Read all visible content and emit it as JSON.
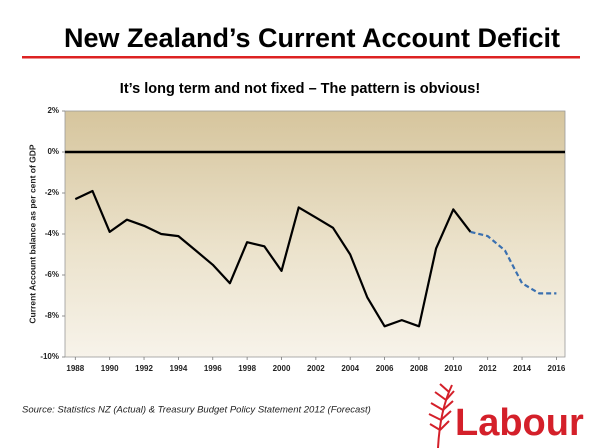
{
  "chart_data": {
    "type": "line",
    "title": "New Zealand’s Current Account Deficit",
    "subtitle": "It’s long term and not fixed – The pattern is obvious!",
    "ylabel": "Current Account balance as per cent of GDP",
    "source": "Source: Statistics NZ (Actual) & Treasury Budget Policy Statement 2012 (Forecast)",
    "x": [
      1988,
      1989,
      1990,
      1991,
      1992,
      1993,
      1994,
      1995,
      1996,
      1997,
      1998,
      1999,
      2000,
      2001,
      2002,
      2003,
      2004,
      2005,
      2006,
      2007,
      2008,
      2009,
      2010,
      2011,
      2012,
      2013,
      2014,
      2015,
      2016
    ],
    "series": [
      {
        "color": "#000000",
        "dashed": false,
        "values": [
          -2.3,
          -1.9,
          -3.9,
          -3.3,
          -3.6,
          -4.0,
          -4.1,
          -4.8,
          -5.5,
          -6.4,
          -4.4,
          -4.6,
          -5.8,
          -2.7,
          -3.2,
          -3.7,
          -5.0,
          -7.1,
          -8.5,
          -8.2,
          -8.5,
          -4.7,
          -2.8,
          -3.9,
          null,
          null,
          null,
          null,
          null
        ]
      },
      {
        "color": "#3a70b0",
        "dashed": true,
        "values": [
          null,
          null,
          null,
          null,
          null,
          null,
          null,
          null,
          null,
          null,
          null,
          null,
          null,
          null,
          null,
          null,
          null,
          null,
          null,
          null,
          null,
          null,
          null,
          -3.9,
          -4.1,
          -4.8,
          -6.4,
          -6.9,
          -6.9
        ]
      }
    ],
    "xlim": [
      1987.4,
      2016.5
    ],
    "xticks": [
      1988,
      1990,
      1992,
      1994,
      1996,
      1998,
      2000,
      2002,
      2004,
      2006,
      2008,
      2010,
      2012,
      2014,
      2016
    ],
    "ylim": [
      -10,
      2
    ],
    "yticks": [
      {
        "value": 2,
        "label": "2%"
      },
      {
        "value": 0,
        "label": "0%"
      },
      {
        "value": -2,
        "label": "-2%"
      },
      {
        "value": -4,
        "label": "-4%"
      },
      {
        "value": -6,
        "label": "-6%"
      },
      {
        "value": -8,
        "label": "-8%"
      },
      {
        "value": -10,
        "label": "-10%"
      }
    ]
  },
  "logo": "Labour"
}
